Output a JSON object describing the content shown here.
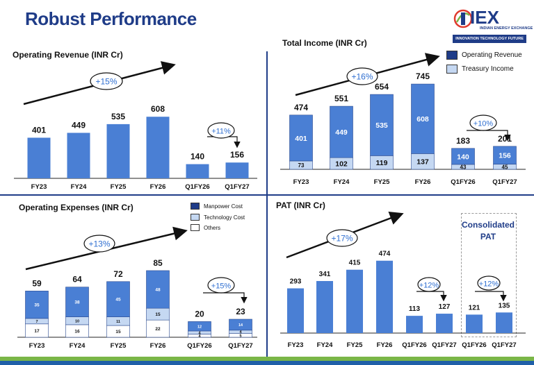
{
  "page_title": "Robust Performance",
  "logo": {
    "name": "IEX",
    "subtitle": "INDIAN ENERGY EXCHANGE",
    "tagline": "INNOVATION  TECHNOLOGY  FUTURE"
  },
  "colors": {
    "bar_blue": "#4a7fd4",
    "bar_dark": "#1f3c88",
    "bar_light": "#c5d8f2",
    "bar_white": "#ffffff",
    "growth_text": "#2f6fd1",
    "footer_green": "#7ab648",
    "footer_blue": "#1f5fa8"
  },
  "chart_data": [
    {
      "id": "operating-revenue",
      "type": "bar",
      "title": "Operating Revenue (INR Cr)",
      "categories": [
        "FY23",
        "FY24",
        "FY25",
        "FY26",
        "Q1FY26",
        "Q1FY27"
      ],
      "series": [
        {
          "values": [
            401,
            449,
            535,
            608,
            140,
            156
          ]
        }
      ],
      "totals": [
        "401",
        "449",
        "535",
        "608",
        "140",
        "156"
      ],
      "growth_labels": [
        "+15%",
        "+11%"
      ]
    },
    {
      "id": "total-income",
      "type": "bar",
      "stacked": true,
      "title": "Total Income (INR Cr)",
      "categories": [
        "FY23",
        "FY24",
        "FY25",
        "FY26",
        "Q1FY26",
        "Q1FY27"
      ],
      "series": [
        {
          "name": "Treasury Income",
          "values": [
            73,
            102,
            119,
            137,
            43,
            45
          ]
        },
        {
          "name": "Operating Revenue",
          "values": [
            401,
            449,
            535,
            608,
            140,
            156
          ]
        }
      ],
      "totals": [
        "474",
        "551",
        "654",
        "745",
        "183",
        "201"
      ],
      "growth_labels": [
        "+16%",
        "+10%"
      ],
      "legend": [
        "Operating Revenue",
        "Treasury Income"
      ],
      "legend_position": "top-right"
    },
    {
      "id": "operating-expenses",
      "type": "bar",
      "stacked": true,
      "title": "Operating Expenses (INR Cr)",
      "categories": [
        "FY23",
        "FY24",
        "FY25",
        "FY26",
        "Q1FY26",
        "Q1FY27"
      ],
      "series": [
        {
          "name": "Others",
          "values": [
            17,
            16,
            15,
            22,
            4,
            5
          ]
        },
        {
          "name": "Technology Cost",
          "values": [
            7,
            10,
            11,
            15,
            4,
            4
          ]
        },
        {
          "name": "Manpower Cost",
          "values": [
            35,
            38,
            45,
            48,
            12,
            14
          ]
        }
      ],
      "totals": [
        "59",
        "64",
        "72",
        "85",
        "20",
        "23"
      ],
      "growth_labels": [
        "+13%",
        "+15%"
      ],
      "legend": [
        "Manpower Cost",
        "Technology Cost",
        "Others"
      ],
      "legend_position": "top-right"
    },
    {
      "id": "pat",
      "type": "bar",
      "title": "PAT (INR Cr)",
      "categories": [
        "FY23",
        "FY24",
        "FY25",
        "FY26",
        "Q1FY26",
        "Q1FY27",
        "Q1FY26",
        "Q1FY27"
      ],
      "series": [
        {
          "values": [
            293,
            341,
            415,
            474,
            113,
            127,
            121,
            135
          ]
        }
      ],
      "totals": [
        "293",
        "341",
        "415",
        "474",
        "113",
        "127",
        "121",
        "135"
      ],
      "growth_labels": [
        "+17%",
        "+12%",
        "+12%"
      ],
      "consolidated_label": "Consolidated\nPAT"
    }
  ]
}
